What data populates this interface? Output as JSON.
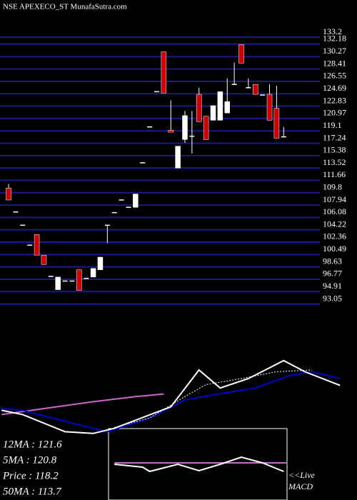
{
  "chart_data": {
    "type": "candlestick",
    "title": "NSE APEXECO_ST MunafaSutra.com",
    "open": [
      110.5,
      106.9,
      104.9,
      101.9,
      103.5,
      100.4,
      97.2,
      95.2,
      96.5,
      96.5,
      98.2,
      96.9,
      97.1,
      98.2,
      104.9,
      106.8,
      108.7,
      107.6,
      107.6,
      114.3,
      119.7,
      125.0,
      131.0,
      119.2,
      113.5,
      117.8,
      118.3,
      124.6,
      121.3,
      120.7,
      120.7,
      121.8,
      126.1,
      132.1,
      125.6,
      126.1,
      124.5,
      124.6,
      122.5,
      118.2
    ],
    "high": [
      111.1,
      106.9,
      104.9,
      101.9,
      103.5,
      100.4,
      97.2,
      97.1,
      96.5,
      96.5,
      98.2,
      96.9,
      98.4,
      100.1,
      104.9,
      106.8,
      108.7,
      107.6,
      109.6,
      114.3,
      119.7,
      125.0,
      131.0,
      123.7,
      116.8,
      122.1,
      122.1,
      125.6,
      121.3,
      122.9,
      125.0,
      127.0,
      129.4,
      132.1,
      127.0,
      126.1,
      124.5,
      126.1,
      125.9,
      119.7
    ],
    "low": [
      108.7,
      106.9,
      104.9,
      101.9,
      100.4,
      99.0,
      97.2,
      95.2,
      96.5,
      96.5,
      95.1,
      96.9,
      97.1,
      98.2,
      102.2,
      106.8,
      108.7,
      107.6,
      107.6,
      114.3,
      119.7,
      125.0,
      124.8,
      118.9,
      113.5,
      117.3,
      115.7,
      120.5,
      117.8,
      120.7,
      120.7,
      121.8,
      126.1,
      129.3,
      125.6,
      124.6,
      124.5,
      120.7,
      118.0,
      118.2
    ],
    "close": [
      108.7,
      106.9,
      104.9,
      101.9,
      100.4,
      99.0,
      97.2,
      97.1,
      96.5,
      96.5,
      95.1,
      96.9,
      98.4,
      100.1,
      104.9,
      106.8,
      108.7,
      107.6,
      109.6,
      114.3,
      119.7,
      125.0,
      124.8,
      118.9,
      116.8,
      121.4,
      118.3,
      120.5,
      117.8,
      122.9,
      125.0,
      123.5,
      126.1,
      129.3,
      125.6,
      124.6,
      124.5,
      120.7,
      118.0,
      118.2
    ],
    "up_color": "#ffffff",
    "down_color": "#cc0000",
    "grid_color": "#1a1a8c",
    "ylim": [
      91.5,
      138.8
    ],
    "yticks": [
      133.2,
      132.18,
      130.27,
      128.41,
      126.55,
      124.69,
      122.83,
      120.97,
      119.1,
      117.24,
      115.38,
      113.52,
      111.66,
      109.8,
      107.94,
      106.08,
      104.22,
      102.36,
      100.49,
      98.63,
      96.77,
      94.91,
      93.05
    ],
    "xlim": [
      -1.22,
      49.4
    ],
    "indicators": {
      "ylim": [
        0,
        100
      ],
      "series": [
        {
          "color": "#cc66cc",
          "x": [
            -1,
            5,
            12,
            18,
            22
          ],
          "values": [
            33,
            40,
            48,
            54,
            57
          ]
        },
        {
          "color": "#0000cc",
          "x": [
            -1,
            2,
            8,
            14,
            20,
            25,
            29,
            35,
            40,
            43,
            47
          ],
          "values": [
            40,
            38,
            25,
            13,
            29,
            50,
            56,
            64,
            79,
            83,
            75
          ]
        },
        {
          "color": "#ffffff",
          "dashed": true,
          "x": [
            15,
            20,
            25,
            28,
            33,
            38,
            43
          ],
          "values": [
            18,
            29,
            54,
            68,
            75,
            83,
            85
          ]
        },
        {
          "color": "#ffffff",
          "x": [
            -1,
            2,
            8,
            12,
            15,
            23,
            27,
            30,
            34,
            39,
            42,
            47
          ],
          "values": [
            38,
            33,
            13,
            11,
            17,
            42,
            85,
            64,
            75,
            96,
            83,
            67
          ]
        }
      ]
    },
    "macd": {
      "ylim": [
        -10,
        10
      ],
      "series": [
        {
          "color": "#cc66cc",
          "x": [
            15,
            40
          ],
          "values": [
            0.4,
            0.4
          ]
        },
        {
          "color": "#ffffff",
          "x": [
            15,
            19,
            20,
            24,
            27,
            30,
            33,
            36,
            39
          ],
          "values": [
            0,
            -0.8,
            -2,
            0,
            -1.8,
            0,
            2,
            0.4,
            -2
          ]
        }
      ]
    },
    "info_labels": [
      "12MA : 121.6",
      "5MA : 120.8",
      "Price  : 118.2",
      "50MA : 113.7"
    ],
    "live_label": "<<Live",
    "macd_label": "MACD"
  }
}
